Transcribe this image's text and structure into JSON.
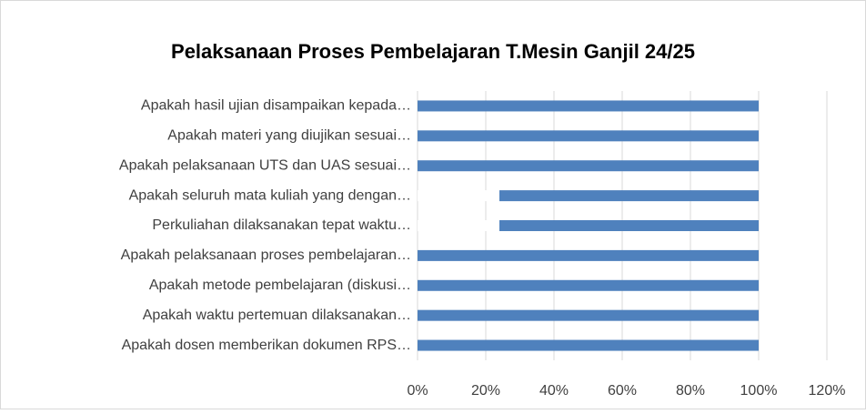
{
  "chart_data": {
    "type": "bar",
    "orientation": "horizontal",
    "stacked": true,
    "title": "Pelaksanaan Proses Pembelajaran T.Mesin Ganjil 24/25",
    "categories": [
      "Apakah hasil ujian disampaikan kepada…",
      "Apakah materi yang diujikan sesuai…",
      "Apakah pelaksanaan UTS dan UAS sesuai…",
      "Apakah seluruh mata kuliah yang dengan…",
      "Perkuliahan dilaksanakan tepat waktu…",
      "Apakah pelaksanaan proses pembelajaran…",
      "Apakah metode pembelajaran (diskusi…",
      "Apakah waktu pertemuan dilaksanakan…",
      "Apakah dosen memberikan dokumen RPS…"
    ],
    "series": [
      {
        "color": "#ffffff",
        "values": [
          0,
          0,
          0,
          24,
          24,
          0,
          0,
          0,
          0
        ]
      },
      {
        "color": "#4f81bd",
        "values": [
          100,
          100,
          100,
          76,
          76,
          100,
          100,
          100,
          100
        ]
      }
    ],
    "xlim": [
      0,
      120
    ],
    "xticks": [
      {
        "value": 0,
        "label": "0%"
      },
      {
        "value": 20,
        "label": "20%"
      },
      {
        "value": 40,
        "label": "40%"
      },
      {
        "value": 60,
        "label": "60%"
      },
      {
        "value": 80,
        "label": "80%"
      },
      {
        "value": 100,
        "label": "100%"
      },
      {
        "value": 120,
        "label": "120%"
      }
    ],
    "grid": true
  }
}
